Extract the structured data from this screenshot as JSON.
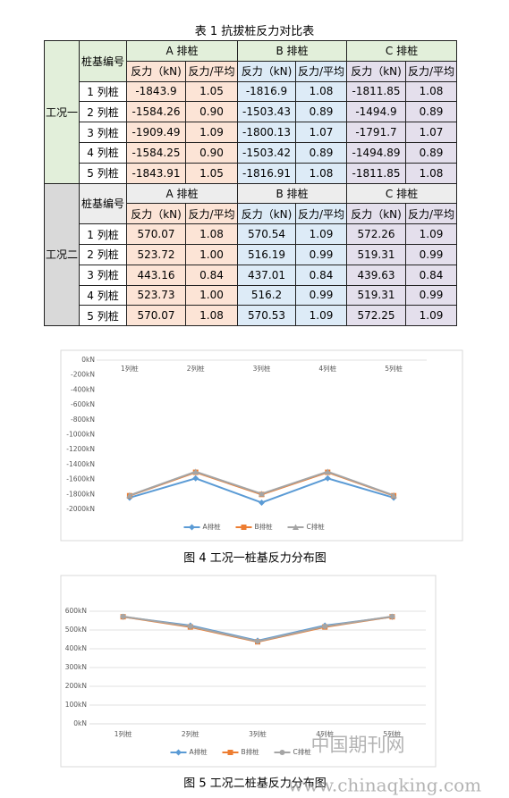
{
  "table": {
    "caption": "表 1   抗拔桩反力对比表",
    "sections": [
      {
        "condition": "工况一",
        "pile_no": "桩基编号",
        "groups": [
          "A 排桩",
          "B 排桩",
          "C 排桩"
        ],
        "columns": [
          "反力（kN)",
          "反力/平均",
          "反力（kN)",
          "反力/平均",
          "反力（kN)",
          "反力/平均"
        ],
        "rows": [
          [
            "1 列桩",
            "-1843.9",
            "1.05",
            "-1816.9",
            "1.08",
            "-1811.85",
            "1.08"
          ],
          [
            "2 列桩",
            "-1584.26",
            "0.90",
            "-1503.43",
            "0.89",
            "-1494.9",
            "0.89"
          ],
          [
            "3 列桩",
            "-1909.49",
            "1.09",
            "-1800.13",
            "1.07",
            "-1791.7",
            "1.07"
          ],
          [
            "4 列桩",
            "-1584.25",
            "0.90",
            "-1503.42",
            "0.89",
            "-1494.89",
            "0.89"
          ],
          [
            "5 列桩",
            "-1843.91",
            "1.05",
            "-1816.91",
            "1.08",
            "-1811.85",
            "1.08"
          ]
        ]
      },
      {
        "condition": "工况二",
        "pile_no": "桩基编号",
        "groups": [
          "A 排桩",
          "B 排桩",
          "C 排桩"
        ],
        "columns": [
          "反力（kN)",
          "反力/平均",
          "反力（kN)",
          "反力/平均",
          "反力（kN)",
          "反力/平均"
        ],
        "rows": [
          [
            "1 列桩",
            "570.07",
            "1.08",
            "570.54",
            "1.09",
            "572.26",
            "1.09"
          ],
          [
            "2 列桩",
            "523.72",
            "1.00",
            "516.19",
            "0.99",
            "519.31",
            "0.99"
          ],
          [
            "3 列桩",
            "443.16",
            "0.84",
            "437.01",
            "0.84",
            "439.63",
            "0.84"
          ],
          [
            "4 列桩",
            "523.73",
            "1.00",
            "516.2",
            "0.99",
            "519.31",
            "0.99"
          ],
          [
            "5 列桩",
            "570.07",
            "1.08",
            "570.53",
            "1.09",
            "572.25",
            "1.09"
          ]
        ]
      }
    ]
  },
  "chart_data": [
    {
      "type": "line",
      "caption": "图 4   工况一桩基反力分布图",
      "category_axis": "top",
      "grid": false,
      "legend": "bottom",
      "categories": [
        "1列桩",
        "2列桩",
        "3列桩",
        "4列桩",
        "5列桩"
      ],
      "series": [
        {
          "name": "A排桩",
          "color": "#5b9bd5",
          "marker": "diamond",
          "values": [
            -1843.9,
            -1584.26,
            -1909.49,
            -1584.25,
            -1843.91
          ]
        },
        {
          "name": "B排桩",
          "color": "#ed7d31",
          "marker": "square",
          "values": [
            -1816.9,
            -1503.43,
            -1800.13,
            -1503.42,
            -1816.91
          ]
        },
        {
          "name": "C排桩",
          "color": "#a5a5a5",
          "marker": "triangle",
          "values": [
            -1811.85,
            -1494.9,
            -1791.7,
            -1494.89,
            -1811.85
          ]
        }
      ],
      "ylim": [
        -2000,
        0
      ],
      "yticks": [
        {
          "value": 0,
          "label": "0kN"
        },
        {
          "value": -200,
          "label": "-200kN"
        },
        {
          "value": -400,
          "label": "-400kN"
        },
        {
          "value": -600,
          "label": "-600kN"
        },
        {
          "value": -800,
          "label": "-800kN"
        },
        {
          "value": -1000,
          "label": "-1000kN"
        },
        {
          "value": -1200,
          "label": "-1200kN"
        },
        {
          "value": -1400,
          "label": "-1400kN"
        },
        {
          "value": -1600,
          "label": "-1600kN"
        },
        {
          "value": -1800,
          "label": "-1800kN"
        },
        {
          "value": -2000,
          "label": "-2000kN"
        }
      ]
    },
    {
      "type": "line",
      "caption": "图 5   工况二桩基反力分布图",
      "category_axis": "bottom",
      "grid": true,
      "legend": "bottom",
      "categories": [
        "1列桩",
        "2列桩",
        "3列桩",
        "4列桩",
        "5列桩"
      ],
      "series": [
        {
          "name": "A排桩",
          "color": "#5b9bd5",
          "marker": "diamond",
          "values": [
            570.07,
            523.72,
            443.16,
            523.73,
            570.07
          ]
        },
        {
          "name": "B排桩",
          "color": "#ed7d31",
          "marker": "square",
          "values": [
            570.54,
            516.19,
            437.01,
            516.2,
            570.53
          ]
        },
        {
          "name": "C排桩",
          "color": "#a5a5a5",
          "marker": "circle",
          "values": [
            572.26,
            519.31,
            439.63,
            519.31,
            572.25
          ]
        }
      ],
      "ylim": [
        0,
        600
      ],
      "yticks": [
        {
          "value": 0,
          "label": "0kN"
        },
        {
          "value": 100,
          "label": "100kN"
        },
        {
          "value": 200,
          "label": "200kN"
        },
        {
          "value": 300,
          "label": "300kN"
        },
        {
          "value": 400,
          "label": "400kN"
        },
        {
          "value": 500,
          "label": "500kN"
        },
        {
          "value": 600,
          "label": "600kN"
        }
      ]
    }
  ],
  "watermark": {
    "logo": "中国期刊网",
    "url": "www.chinaqking.com"
  }
}
